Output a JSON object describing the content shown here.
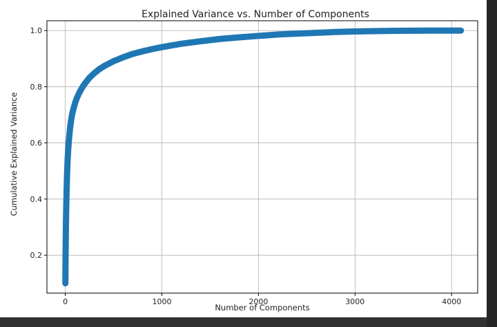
{
  "chart_data": {
    "type": "scatter",
    "title": "Explained Variance vs. Number of Components",
    "xlabel": "Number of Components",
    "ylabel": "Cumulative Explained Variance",
    "xlim": [
      -190,
      4270
    ],
    "ylim": [
      0.065,
      1.035
    ],
    "xticks": [
      0,
      1000,
      2000,
      3000,
      4000
    ],
    "yticks": [
      0.2,
      0.4,
      0.6,
      0.8,
      1.0
    ],
    "xtick_labels": [
      "0",
      "1000",
      "2000",
      "3000",
      "4000"
    ],
    "ytick_labels": [
      "0.2",
      "0.4",
      "0.6",
      "0.8",
      "1.0"
    ],
    "grid": true,
    "marker": "circle",
    "connected": true,
    "color": "#1f77b4",
    "series": [
      {
        "x": [
          1,
          2,
          3,
          4,
          5,
          6,
          7,
          8,
          9,
          10,
          12,
          14,
          16,
          18,
          20,
          25,
          30,
          35,
          40,
          50,
          60,
          70,
          80,
          90,
          100,
          120,
          140,
          160,
          180,
          200,
          250,
          300,
          350,
          400,
          500,
          600,
          700,
          800,
          900,
          1000,
          1200,
          1400,
          1600,
          1800,
          2000,
          2200,
          2400,
          2600,
          2800,
          3000,
          3200,
          3400,
          3600,
          3800,
          4000,
          4096
        ],
        "y": [
          0.1,
          0.15,
          0.2,
          0.235,
          0.265,
          0.29,
          0.315,
          0.335,
          0.355,
          0.375,
          0.405,
          0.435,
          0.46,
          0.485,
          0.505,
          0.545,
          0.575,
          0.6,
          0.62,
          0.655,
          0.68,
          0.7,
          0.715,
          0.728,
          0.74,
          0.76,
          0.775,
          0.788,
          0.8,
          0.81,
          0.832,
          0.848,
          0.862,
          0.873,
          0.891,
          0.905,
          0.917,
          0.926,
          0.934,
          0.941,
          0.953,
          0.962,
          0.97,
          0.976,
          0.981,
          0.986,
          0.989,
          0.992,
          0.995,
          0.997,
          0.998,
          0.999,
          0.9995,
          0.9998,
          1.0,
          1.0
        ]
      }
    ]
  }
}
